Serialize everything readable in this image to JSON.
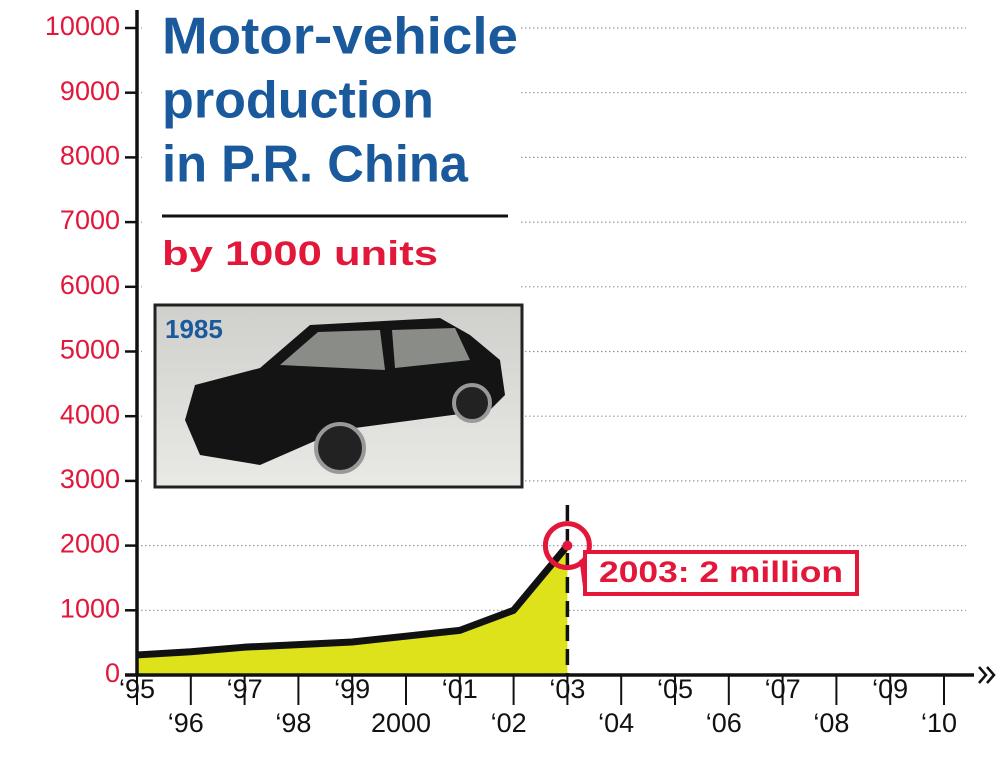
{
  "chart_data": {
    "type": "area",
    "title": [
      "Motor-vehicle",
      "production",
      "in P.R. China"
    ],
    "subtitle": "by 1000 units",
    "photo_label": "1985",
    "annotation": "2003: 2 million",
    "categories": [
      "‘95",
      "‘96",
      "‘97",
      "‘98",
      "‘99",
      "2000",
      "‘01",
      "‘02",
      "‘03",
      "‘04",
      "‘05",
      "‘06",
      "‘07",
      "‘08",
      "‘09",
      "‘10"
    ],
    "values": [
      310,
      360,
      430,
      470,
      510,
      600,
      690,
      1000,
      2000,
      null,
      null,
      null,
      null,
      null,
      null,
      null
    ],
    "color": "#dde21a",
    "line_color": "#111111",
    "ylim": [
      0,
      10000
    ],
    "yticks": [
      0,
      1000,
      2000,
      3000,
      4000,
      5000,
      6000,
      7000,
      8000,
      9000,
      10000
    ],
    "grid": true
  }
}
